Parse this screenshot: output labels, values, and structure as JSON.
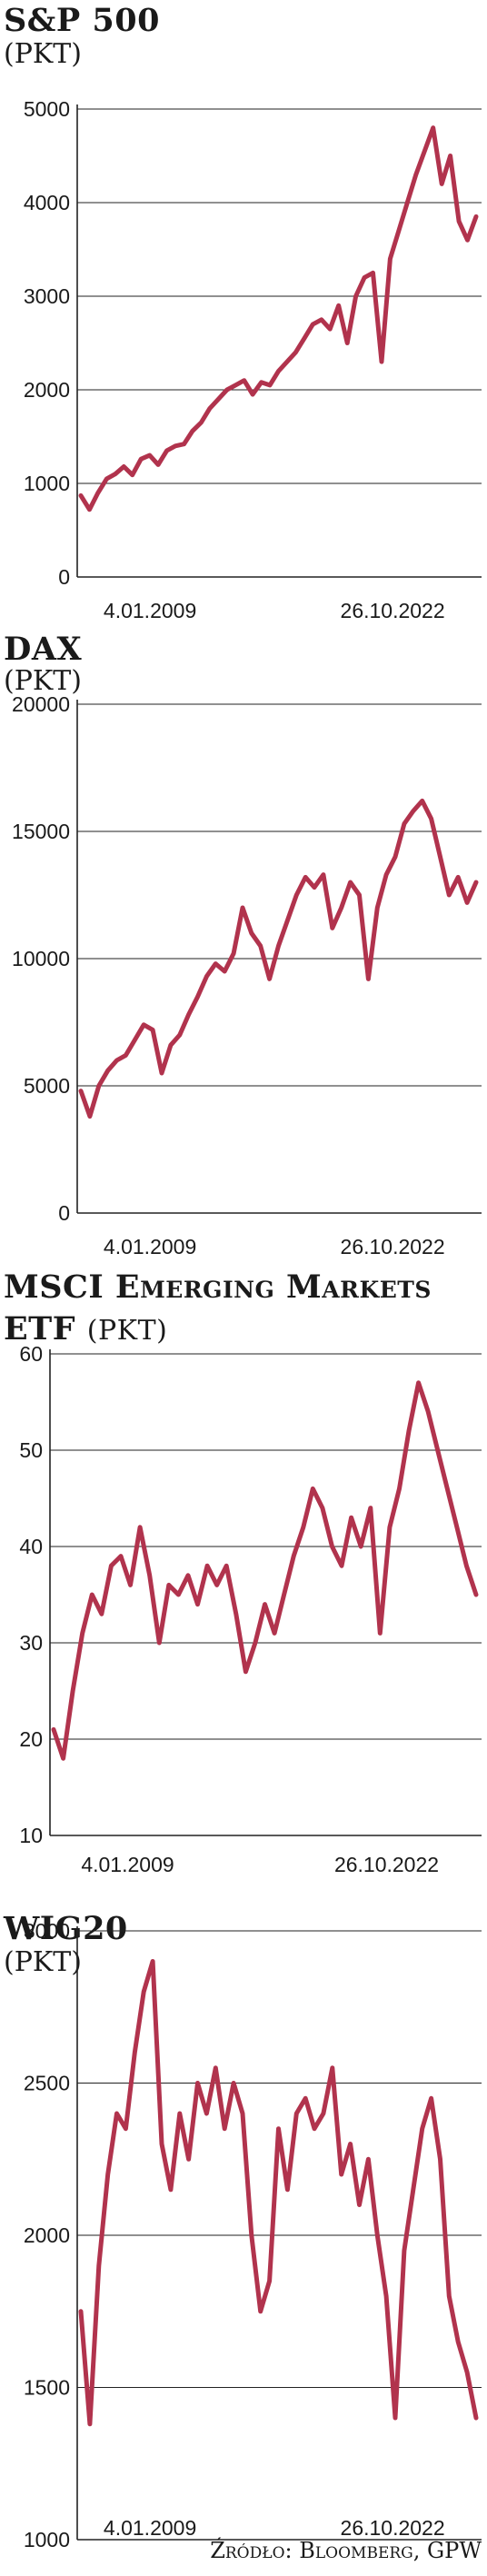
{
  "source": "Źródło: Bloomberg, GPW",
  "colors": {
    "line": "#b1334d",
    "grid": "#222222"
  },
  "charts": [
    {
      "title": "S&P 500",
      "unit": "(PKT)"
    },
    {
      "title": "DAX",
      "unit": "(PKT)"
    },
    {
      "title_1": "MSCI Emerging Markets",
      "title_2": "ETF",
      "unit": "(PKT)"
    },
    {
      "title": "WIG20",
      "unit": "(PKT)"
    }
  ],
  "chart_data": [
    {
      "type": "line",
      "title": "S&P 500",
      "ylabel": "(PKT)",
      "ylim": [
        0,
        5000
      ],
      "yticks": [
        "0",
        "1000",
        "2000",
        "3000",
        "4000",
        "5000"
      ],
      "xticks": [
        "4.01.2009",
        "26.10.2022"
      ],
      "series": [
        {
          "values": [
            870,
            720,
            900,
            1050,
            1100,
            1180,
            1090,
            1260,
            1300,
            1200,
            1350,
            1400,
            1420,
            1560,
            1650,
            1800,
            1900,
            2000,
            2050,
            2100,
            1950,
            2080,
            2050,
            2200,
            2300,
            2400,
            2550,
            2700,
            2750,
            2650,
            2900,
            2500,
            3000,
            3200,
            3250,
            2300,
            3400,
            3700,
            4000,
            4300,
            4550,
            4800,
            4200,
            4500,
            3800,
            3600,
            3850
          ]
        }
      ]
    },
    {
      "type": "line",
      "title": "DAX",
      "ylabel": "(PKT)",
      "ylim": [
        0,
        20000
      ],
      "yticks": [
        "0",
        "5000",
        "10000",
        "15000",
        "20000"
      ],
      "xticks": [
        "4.01.2009",
        "26.10.2022"
      ],
      "series": [
        {
          "values": [
            4800,
            3800,
            5000,
            5600,
            6000,
            6200,
            6800,
            7400,
            7200,
            5500,
            6600,
            7000,
            7800,
            8500,
            9300,
            9800,
            9500,
            10200,
            12000,
            11000,
            10500,
            9200,
            10500,
            11500,
            12500,
            13200,
            12800,
            13300,
            11200,
            12000,
            13000,
            12500,
            9200,
            12000,
            13300,
            14000,
            15300,
            15800,
            16200,
            15500,
            14000,
            12500,
            13200,
            12200,
            13000
          ]
        }
      ]
    },
    {
      "type": "line",
      "title": "MSCI Emerging Markets ETF",
      "ylabel": "(PKT)",
      "ylim": [
        10,
        60
      ],
      "yticks": [
        "10",
        "20",
        "30",
        "40",
        "50",
        "60"
      ],
      "xticks": [
        "4.01.2009",
        "26.10.2022"
      ],
      "series": [
        {
          "values": [
            21,
            18,
            25,
            31,
            35,
            33,
            38,
            39,
            36,
            42,
            37,
            30,
            36,
            35,
            37,
            34,
            38,
            36,
            38,
            33,
            27,
            30,
            34,
            31,
            35,
            39,
            42,
            46,
            44,
            40,
            38,
            43,
            40,
            44,
            31,
            42,
            46,
            52,
            57,
            54,
            50,
            46,
            42,
            38,
            35
          ]
        }
      ]
    },
    {
      "type": "line",
      "title": "WIG20",
      "ylabel": "(PKT)",
      "ylim": [
        1000,
        3000
      ],
      "yticks": [
        "1000",
        "1500",
        "2000",
        "2500",
        "3000"
      ],
      "xticks": [
        "4.01.2009",
        "26.10.2022"
      ],
      "series": [
        {
          "values": [
            1750,
            1380,
            1900,
            2200,
            2400,
            2350,
            2600,
            2800,
            2900,
            2300,
            2150,
            2400,
            2250,
            2500,
            2400,
            2550,
            2350,
            2500,
            2400,
            2000,
            1750,
            1850,
            2350,
            2150,
            2400,
            2450,
            2350,
            2400,
            2550,
            2200,
            2300,
            2100,
            2250,
            2000,
            1800,
            1400,
            1950,
            2150,
            2350,
            2450,
            2250,
            1800,
            1650,
            1550,
            1400
          ]
        }
      ]
    }
  ]
}
